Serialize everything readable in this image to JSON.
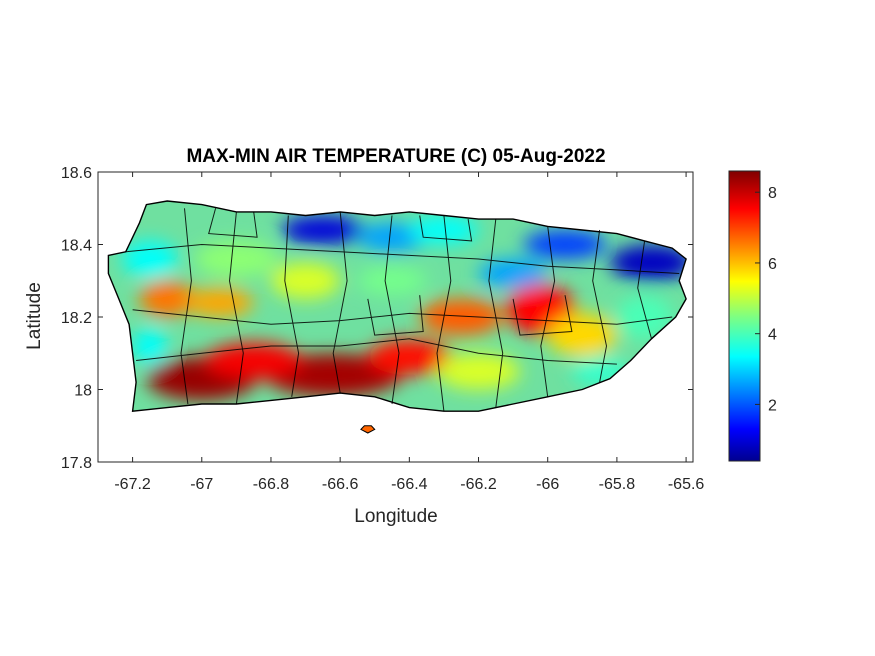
{
  "chart_data": {
    "type": "heatmap",
    "title": "MAX-MIN AIR TEMPERATURE (C) 05-Aug-2022",
    "xlabel": "Longitude",
    "ylabel": "Latitude",
    "xlim": [
      -67.3,
      -65.58
    ],
    "ylim": [
      17.8,
      18.6
    ],
    "xticks": [
      "-67.2",
      "-67",
      "-66.8",
      "-66.6",
      "-66.4",
      "-66.2",
      "-66",
      "-65.8",
      "-65.6"
    ],
    "xtick_values": [
      -67.2,
      -67.0,
      -66.8,
      -66.6,
      -66.4,
      -66.2,
      -66.0,
      -65.8,
      -65.6
    ],
    "yticks": [
      "17.8",
      "18",
      "18.2",
      "18.4",
      "18.6"
    ],
    "ytick_values": [
      17.8,
      18.0,
      18.2,
      18.4,
      18.6
    ],
    "colorbar": {
      "colormap": "jet",
      "range": [
        0.4,
        8.6
      ],
      "ticks": [
        "2",
        "4",
        "6",
        "8"
      ],
      "tick_values": [
        2,
        4,
        6,
        8
      ]
    },
    "grid": false,
    "regions": [
      {
        "name": "Puerto Rico",
        "description_values": "temperature range field over island"
      }
    ],
    "hotspots": [
      {
        "lon": -67.0,
        "lat": 18.03,
        "value": 8.4
      },
      {
        "lon": -66.62,
        "lat": 18.04,
        "value": 8.2
      },
      {
        "lon": -66.4,
        "lat": 18.1,
        "value": 7.6
      },
      {
        "lon": -66.02,
        "lat": 18.22,
        "value": 7.4
      },
      {
        "lon": -67.1,
        "lat": 18.25,
        "value": 6.8
      },
      {
        "lon": -66.65,
        "lat": 18.44,
        "value": 1.0
      },
      {
        "lon": -65.7,
        "lat": 18.35,
        "value": 0.8
      },
      {
        "lon": -66.1,
        "lat": 18.32,
        "value": 2.2
      },
      {
        "lon": -67.15,
        "lat": 18.35,
        "value": 3.5
      }
    ]
  }
}
